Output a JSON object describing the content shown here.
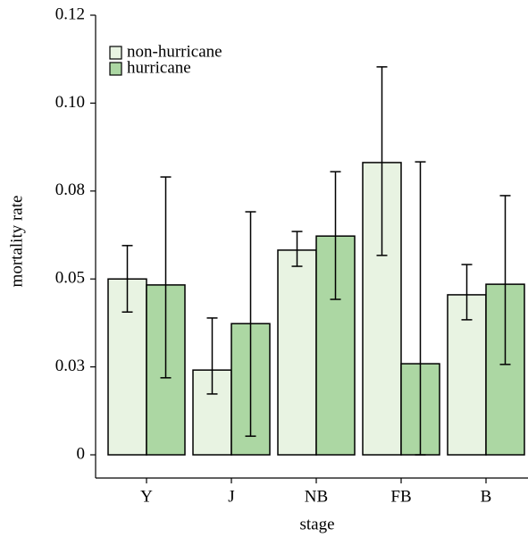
{
  "chart_data": {
    "type": "bar",
    "x_label": "stage",
    "y_label": "mortality rate",
    "categories": [
      "Y",
      "J",
      "NB",
      "FB",
      "B"
    ],
    "series": [
      {
        "name": "non-hurricane",
        "color": "#e8f3e2",
        "values": [
          0.05,
          0.0241,
          0.0582,
          0.0831,
          0.0455
        ],
        "lower": [
          0.0406,
          0.0173,
          0.0536,
          0.0567,
          0.0384
        ],
        "upper": [
          0.0595,
          0.0389,
          0.0635,
          0.1103,
          0.0541
        ]
      },
      {
        "name": "hurricane",
        "color": "#acd7a3",
        "values": [
          0.0483,
          0.0373,
          0.0622,
          0.0259,
          0.0485
        ],
        "lower": [
          0.0219,
          0.0053,
          0.0442,
          0,
          0.0257
        ],
        "upper": [
          0.079,
          0.0691,
          0.0805,
          0.0833,
          0.0737
        ]
      }
    ],
    "ylim": [
      -0.0066,
      0.125
    ],
    "yticks": [
      0,
      {
        "value": 0.025,
        "label": "0.03"
      },
      0.05,
      {
        "value": 0.075,
        "label": "0.08"
      },
      {
        "value": 0.1,
        "label": "0.10"
      },
      {
        "value": 0.125,
        "label": "0.12"
      }
    ],
    "legend": "top-left"
  }
}
